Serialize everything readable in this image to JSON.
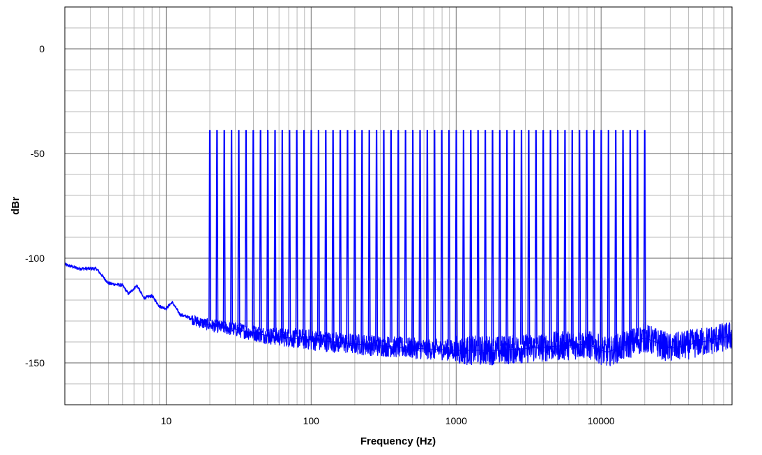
{
  "chart_data": {
    "type": "line",
    "title": "",
    "xlabel": "Frequency (Hz)",
    "ylabel": "dBr",
    "x_scale": "log",
    "xlim": [
      2,
      80000
    ],
    "ylim": [
      -170,
      20
    ],
    "x_ticks": [
      {
        "value": 10,
        "label": "10"
      },
      {
        "value": 100,
        "label": "100"
      },
      {
        "value": 1000,
        "label": "1000"
      },
      {
        "value": 10000,
        "label": "10000"
      }
    ],
    "y_ticks": [
      {
        "value": 0,
        "label": "0"
      },
      {
        "value": -50,
        "label": "-50"
      },
      {
        "value": -100,
        "label": "-100"
      },
      {
        "value": -150,
        "label": "-150"
      }
    ],
    "grid": true,
    "legend": "none",
    "series": [
      {
        "color": "#0000ff",
        "noise_floor": [
          {
            "x": 2,
            "y": -103
          },
          {
            "x": 2.5,
            "y": -105
          },
          {
            "x": 3.3,
            "y": -105
          },
          {
            "x": 4,
            "y": -112
          },
          {
            "x": 5,
            "y": -113
          },
          {
            "x": 5.5,
            "y": -117
          },
          {
            "x": 6.3,
            "y": -113
          },
          {
            "x": 7,
            "y": -119
          },
          {
            "x": 8,
            "y": -118
          },
          {
            "x": 9,
            "y": -123
          },
          {
            "x": 10,
            "y": -124
          },
          {
            "x": 11,
            "y": -121
          },
          {
            "x": 12.5,
            "y": -127
          },
          {
            "x": 14,
            "y": -128
          },
          {
            "x": 16,
            "y": -130
          },
          {
            "x": 20,
            "y": -132
          },
          {
            "x": 30,
            "y": -134
          },
          {
            "x": 50,
            "y": -137
          },
          {
            "x": 100,
            "y": -139
          },
          {
            "x": 200,
            "y": -141
          },
          {
            "x": 500,
            "y": -143
          },
          {
            "x": 1000,
            "y": -144
          },
          {
            "x": 2000,
            "y": -144
          },
          {
            "x": 5000,
            "y": -142
          },
          {
            "x": 8000,
            "y": -141
          },
          {
            "x": 11000,
            "y": -145
          },
          {
            "x": 20000,
            "y": -138
          },
          {
            "x": 30000,
            "y": -143
          },
          {
            "x": 50000,
            "y": -140
          },
          {
            "x": 80000,
            "y": -137
          }
        ],
        "tones": {
          "start_hz": 20,
          "stop_hz": 20000,
          "count": 61,
          "level": -39
        }
      }
    ]
  }
}
